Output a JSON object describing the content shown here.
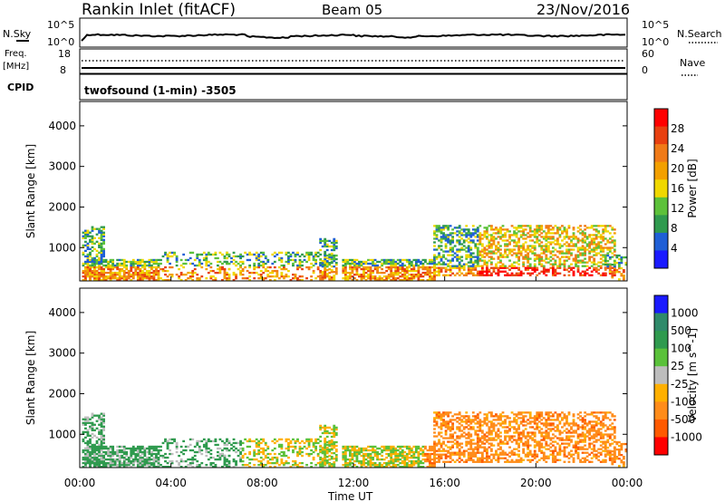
{
  "header": {
    "title": "Rankin Inlet (fitACF)",
    "beam": "Beam 05",
    "date": "23/Nov/2016"
  },
  "strip_labels": {
    "nsky": "N.Sky",
    "nsky_top": "10^5",
    "nsky_bottom": "10^0",
    "nsearch": "N.Search",
    "nsearch_top": "10^5",
    "nsearch_bottom": "10^0",
    "freq_label_1": "Freq.",
    "freq_label_2": "[MHz]",
    "freq_top": "18",
    "freq_bottom": "8",
    "nave": "Nave",
    "nave_top": "60",
    "nave_bottom": "0",
    "cpid": "CPID",
    "program": "twofsound (1-min) -3505"
  },
  "colors": {
    "power": [
      "#1a1aff",
      "#1f5fd6",
      "#2f9a4e",
      "#5cc13a",
      "#f0d800",
      "#f3a000",
      "#f07a18",
      "#e84010",
      "#ff0000"
    ],
    "velocity": [
      "#ff0000",
      "#ff5a00",
      "#ff8c1a",
      "#ffb000",
      "#bdbdbd",
      "#5ac13a",
      "#2f9a4e",
      "#2f8a6a",
      "#1a1aff"
    ]
  },
  "chart_data": [
    {
      "type": "heatmap",
      "name_panel": "power",
      "ylabel": "Slant Range [km]",
      "yticks": [
        "1000",
        "2000",
        "3000",
        "4000"
      ],
      "ylim": [
        180,
        4600
      ],
      "xlim": [
        0,
        24
      ],
      "colorbar_label": "Power [dB]",
      "colorbar_ticks": [
        "4",
        "8",
        "12",
        "16",
        "20",
        "24",
        "28"
      ],
      "colorbar_range": [
        0,
        30
      ]
    },
    {
      "type": "heatmap",
      "name_panel": "velocity",
      "ylabel": "Slant Range [km]",
      "yticks": [
        "1000",
        "2000",
        "3000",
        "4000"
      ],
      "ylim": [
        180,
        4600
      ],
      "xlim": [
        0,
        24
      ],
      "xlabel": "Time UT",
      "xticks": [
        "00:00",
        "04:00",
        "08:00",
        "12:00",
        "16:00",
        "20:00",
        "00:00"
      ],
      "colorbar_label": "Velocity [m s^-1]",
      "colorbar_ticks": [
        "1000",
        "500",
        "100",
        "25",
        "-25",
        "-100",
        "-500",
        "-1000"
      ]
    }
  ]
}
